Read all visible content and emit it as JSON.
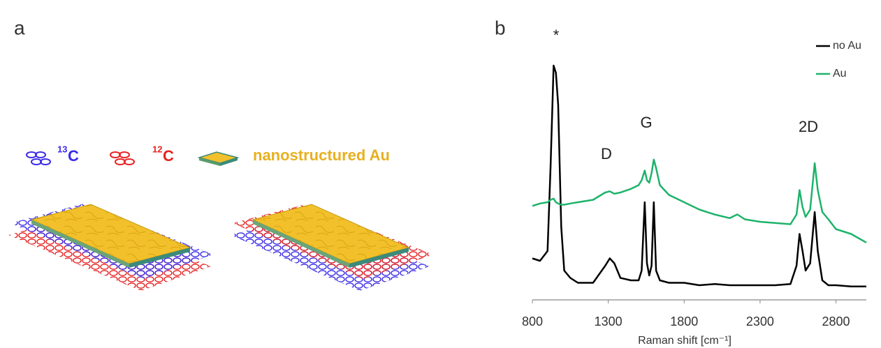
{
  "panel_a": {
    "label": "a",
    "legend": [
      {
        "mass": "13",
        "element": "C"
      },
      {
        "mass": "12",
        "element": "C"
      },
      {
        "text": "nanostructured Au"
      }
    ]
  },
  "chart_data": {
    "type": "line",
    "panel_label": "b",
    "xlabel": "Raman shift [cm⁻¹]",
    "xlim": [
      800,
      3000
    ],
    "xticks": [
      800,
      1300,
      1800,
      2300,
      2800
    ],
    "ylim": [
      0,
      100
    ],
    "legend": "upper right",
    "annotations": [
      "*",
      "D",
      "G",
      "2D"
    ],
    "x": [
      800,
      850,
      900,
      920,
      940,
      955,
      970,
      990,
      1010,
      1050,
      1100,
      1200,
      1280,
      1310,
      1340,
      1380,
      1450,
      1500,
      1520,
      1540,
      1555,
      1570,
      1585,
      1600,
      1615,
      1640,
      1700,
      1800,
      1900,
      2000,
      2100,
      2150,
      2200,
      2300,
      2400,
      2500,
      2540,
      2560,
      2580,
      2600,
      2630,
      2660,
      2680,
      2710,
      2750,
      2800,
      2900,
      3000
    ],
    "series": [
      {
        "name": "no Au",
        "color": "#000000",
        "values": [
          17,
          16,
          20,
          55,
          96,
          93,
          80,
          30,
          12,
          9,
          7,
          7,
          14,
          17,
          15,
          9,
          8,
          8,
          12,
          40,
          15,
          10,
          14,
          40,
          12,
          8,
          7,
          7,
          6,
          6.5,
          6,
          6,
          6,
          6,
          6,
          6.5,
          14,
          27,
          20,
          12,
          15,
          36,
          20,
          8,
          6,
          6,
          5.5,
          5.5
        ]
      },
      {
        "name": "Au",
        "color": "#1db36a",
        "values": [
          38.5,
          39.5,
          40,
          41,
          41.5,
          40,
          39.5,
          39,
          39,
          39.5,
          40,
          41,
          44,
          44.5,
          43.5,
          44,
          45.5,
          47,
          49,
          53,
          49,
          48,
          52,
          57.5,
          54,
          47,
          43,
          40,
          37,
          35,
          33.5,
          35,
          33,
          32,
          31.5,
          31,
          35,
          45,
          38,
          34,
          37,
          56,
          45,
          36,
          33,
          29,
          27,
          23.5
        ]
      }
    ]
  }
}
